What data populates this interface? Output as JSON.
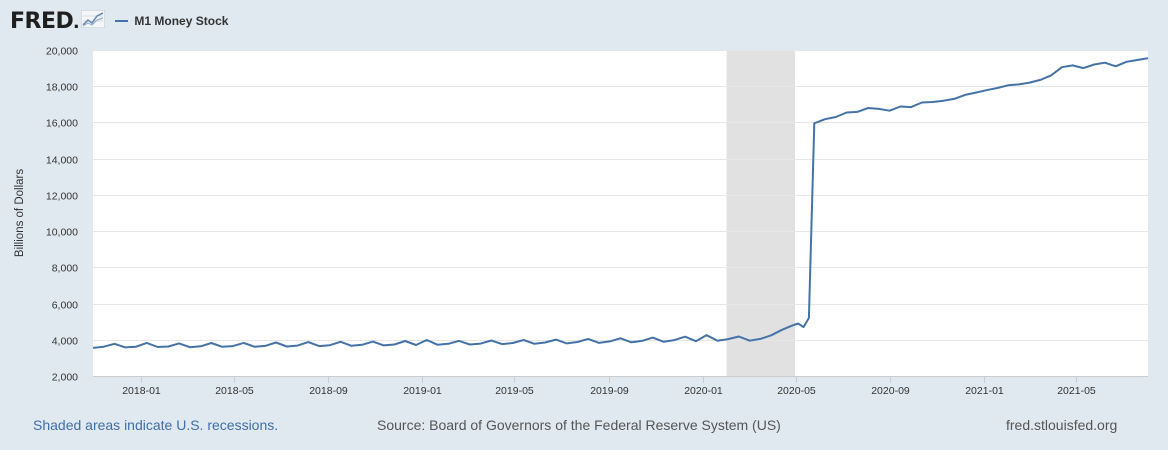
{
  "logo": {
    "text": "FRED",
    "dot": "."
  },
  "legend": {
    "series_name": "M1 Money Stock",
    "color": "#4572a7"
  },
  "footer": {
    "recession_note": "Shaded areas indicate U.S. recessions.",
    "source": "Source: Board of Governors of the Federal Reserve System (US)",
    "site": "fred.stlouisfed.org"
  },
  "chart_data": {
    "type": "line",
    "title": "",
    "xlabel": "",
    "ylabel": "Billions of Dollars",
    "xlim": [
      "2017-10-30",
      "2021-08-02"
    ],
    "ylim": [
      2000,
      20000
    ],
    "yticks": [
      2000,
      4000,
      6000,
      8000,
      10000,
      12000,
      14000,
      16000,
      18000,
      20000
    ],
    "ytick_labels": [
      "2,000",
      "4,000",
      "6,000",
      "8,000",
      "10,000",
      "12,000",
      "14,000",
      "16,000",
      "18,000",
      "20,000"
    ],
    "xticks": [
      "2018-01-01",
      "2018-05-01",
      "2018-09-01",
      "2019-01-01",
      "2019-05-01",
      "2019-09-01",
      "2020-01-01",
      "2020-05-01",
      "2020-09-01",
      "2021-01-01",
      "2021-05-01"
    ],
    "xtick_labels": [
      "2018-01",
      "2018-05",
      "2018-09",
      "2019-01",
      "2019-05",
      "2019-09",
      "2020-01",
      "2020-05",
      "2020-09",
      "2021-01",
      "2021-05"
    ],
    "grid": true,
    "legend_position": "top-left",
    "recession_shading": [
      {
        "start": "2020-02-01",
        "end": "2020-04-30",
        "color": "#e1e1e1"
      }
    ],
    "series": [
      {
        "name": "M1 Money Stock",
        "color": "#4572a7",
        "points": [
          [
            "2017-10-30",
            3550
          ],
          [
            "2017-11-13",
            3620
          ],
          [
            "2017-11-27",
            3780
          ],
          [
            "2017-12-11",
            3580
          ],
          [
            "2017-12-25",
            3620
          ],
          [
            "2018-01-08",
            3830
          ],
          [
            "2018-01-22",
            3600
          ],
          [
            "2018-02-05",
            3630
          ],
          [
            "2018-02-19",
            3800
          ],
          [
            "2018-03-05",
            3590
          ],
          [
            "2018-03-19",
            3640
          ],
          [
            "2018-04-02",
            3820
          ],
          [
            "2018-04-16",
            3610
          ],
          [
            "2018-04-30",
            3650
          ],
          [
            "2018-05-14",
            3830
          ],
          [
            "2018-05-28",
            3620
          ],
          [
            "2018-06-11",
            3660
          ],
          [
            "2018-06-25",
            3850
          ],
          [
            "2018-07-09",
            3630
          ],
          [
            "2018-07-23",
            3680
          ],
          [
            "2018-08-06",
            3870
          ],
          [
            "2018-08-20",
            3650
          ],
          [
            "2018-09-03",
            3700
          ],
          [
            "2018-09-17",
            3890
          ],
          [
            "2018-10-01",
            3670
          ],
          [
            "2018-10-15",
            3720
          ],
          [
            "2018-10-29",
            3900
          ],
          [
            "2018-11-12",
            3690
          ],
          [
            "2018-11-26",
            3740
          ],
          [
            "2018-12-10",
            3930
          ],
          [
            "2018-12-24",
            3710
          ],
          [
            "2019-01-07",
            3990
          ],
          [
            "2019-01-21",
            3730
          ],
          [
            "2019-02-04",
            3780
          ],
          [
            "2019-02-18",
            3940
          ],
          [
            "2019-03-04",
            3740
          ],
          [
            "2019-03-18",
            3790
          ],
          [
            "2019-04-01",
            3960
          ],
          [
            "2019-04-15",
            3760
          ],
          [
            "2019-04-29",
            3820
          ],
          [
            "2019-05-13",
            3990
          ],
          [
            "2019-05-27",
            3780
          ],
          [
            "2019-06-10",
            3850
          ],
          [
            "2019-06-24",
            4010
          ],
          [
            "2019-07-08",
            3800
          ],
          [
            "2019-07-22",
            3880
          ],
          [
            "2019-08-05",
            4050
          ],
          [
            "2019-08-19",
            3830
          ],
          [
            "2019-09-02",
            3910
          ],
          [
            "2019-09-16",
            4080
          ],
          [
            "2019-09-30",
            3860
          ],
          [
            "2019-10-14",
            3940
          ],
          [
            "2019-10-28",
            4120
          ],
          [
            "2019-11-11",
            3890
          ],
          [
            "2019-11-25",
            3980
          ],
          [
            "2019-12-09",
            4170
          ],
          [
            "2019-12-23",
            3920
          ],
          [
            "2020-01-06",
            4260
          ],
          [
            "2020-01-20",
            3950
          ],
          [
            "2020-02-03",
            4040
          ],
          [
            "2020-02-17",
            4180
          ],
          [
            "2020-03-02",
            3950
          ],
          [
            "2020-03-16",
            4050
          ],
          [
            "2020-03-30",
            4250
          ],
          [
            "2020-04-13",
            4550
          ],
          [
            "2020-04-27",
            4800
          ],
          [
            "2020-05-04",
            4900
          ],
          [
            "2020-05-11",
            4700
          ],
          [
            "2020-05-18",
            5200
          ],
          [
            "2020-05-25",
            15950
          ],
          [
            "2020-06-08",
            16180
          ],
          [
            "2020-06-22",
            16300
          ],
          [
            "2020-07-06",
            16550
          ],
          [
            "2020-07-20",
            16580
          ],
          [
            "2020-08-03",
            16800
          ],
          [
            "2020-08-17",
            16750
          ],
          [
            "2020-08-31",
            16650
          ],
          [
            "2020-09-14",
            16880
          ],
          [
            "2020-09-28",
            16850
          ],
          [
            "2020-10-12",
            17100
          ],
          [
            "2020-10-26",
            17130
          ],
          [
            "2020-11-09",
            17200
          ],
          [
            "2020-11-23",
            17300
          ],
          [
            "2020-12-07",
            17520
          ],
          [
            "2020-12-21",
            17650
          ],
          [
            "2021-01-04",
            17780
          ],
          [
            "2021-01-18",
            17900
          ],
          [
            "2021-02-01",
            18050
          ],
          [
            "2021-02-15",
            18100
          ],
          [
            "2021-03-01",
            18200
          ],
          [
            "2021-03-15",
            18350
          ],
          [
            "2021-03-29",
            18600
          ],
          [
            "2021-04-12",
            19050
          ],
          [
            "2021-04-26",
            19150
          ],
          [
            "2021-05-10",
            19000
          ],
          [
            "2021-05-24",
            19200
          ],
          [
            "2021-06-07",
            19300
          ],
          [
            "2021-06-21",
            19100
          ],
          [
            "2021-07-05",
            19350
          ],
          [
            "2021-07-19",
            19450
          ],
          [
            "2021-08-02",
            19550
          ]
        ]
      }
    ]
  }
}
